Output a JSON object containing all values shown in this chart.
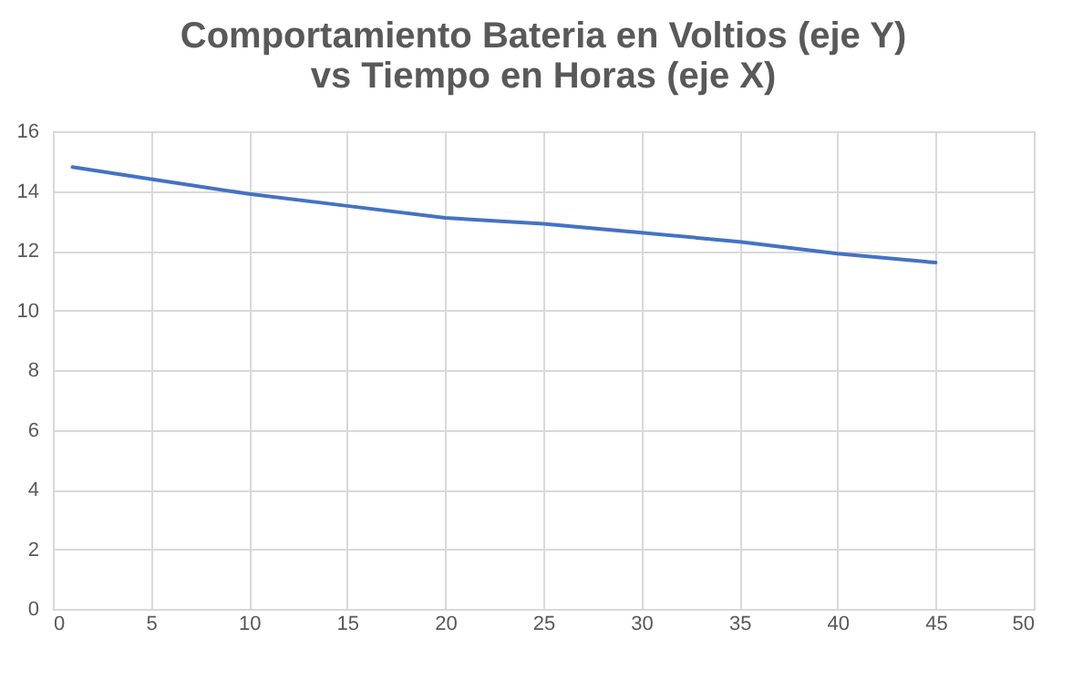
{
  "chart_data": {
    "type": "line",
    "title": "Comportamiento Bateria en Voltios (eje Y) vs Tiempo en Horas (eje X)",
    "x": [
      1,
      5,
      10,
      15,
      20,
      25,
      30,
      35,
      40,
      45
    ],
    "series": [
      {
        "color": "#4472c4",
        "values": [
          14.8,
          14.4,
          13.9,
          13.5,
          13.1,
          12.9,
          12.6,
          12.3,
          11.9,
          11.6
        ]
      }
    ],
    "xlim": [
      0,
      50
    ],
    "xticks": [
      0,
      5,
      10,
      15,
      20,
      25,
      30,
      35,
      40,
      45,
      50
    ],
    "ylim": [
      0,
      16
    ],
    "yticks": [
      0,
      2,
      4,
      6,
      8,
      10,
      12,
      14,
      16
    ],
    "grid": true
  }
}
